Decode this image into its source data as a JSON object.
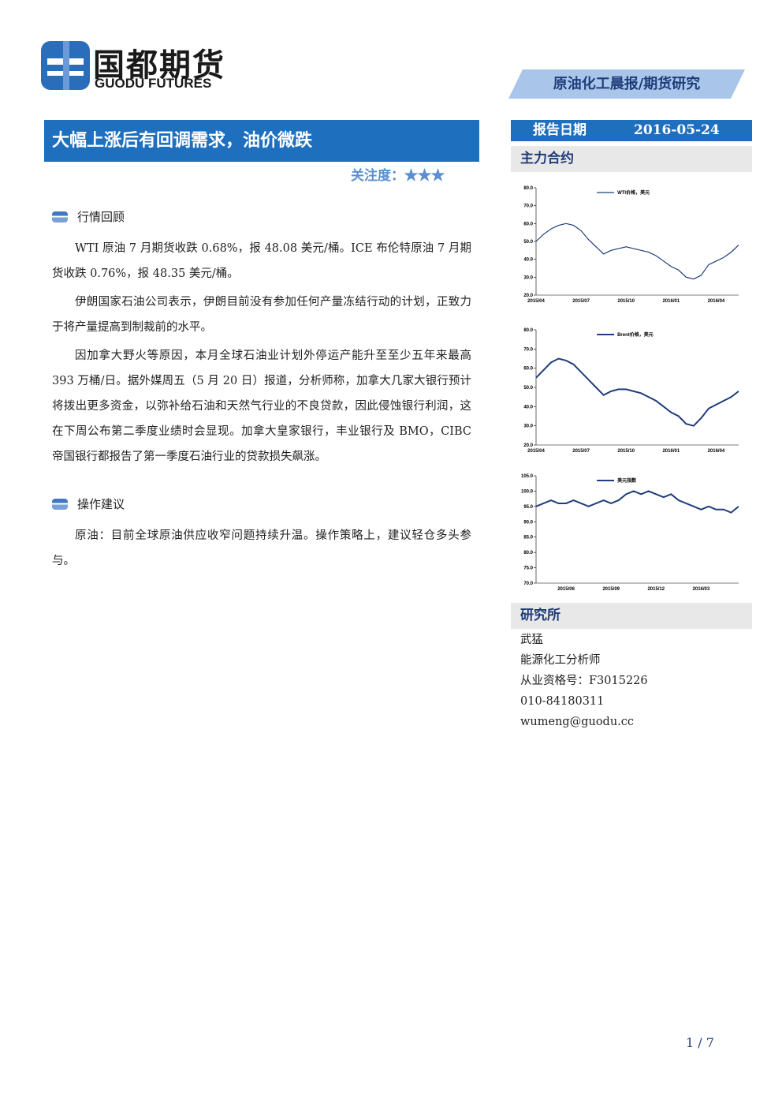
{
  "header": {
    "logo_cn": "国都期货",
    "logo_en": "GUODU FUTURES",
    "report_type": "原油化工晨报/期货研究"
  },
  "title": "大幅上涨后有回调需求，油价微跌",
  "attention": {
    "label": "关注度：",
    "stars": "★★★"
  },
  "sections": [
    {
      "heading": "行情回顾",
      "paragraphs": [
        "WTI 原油 7 月期货收跌 0.68%，报 48.08 美元/桶。ICE 布伦特原油 7 月期货收跌 0.76%，报 48.35 美元/桶。",
        "伊朗国家石油公司表示，伊朗目前没有参加任何产量冻结行动的计划，正致力于将产量提高到制裁前的水平。",
        "因加拿大野火等原因，本月全球石油业计划外停运产能升至至少五年来最高 393 万桶/日。据外媒周五（5 月 20 日）报道，分析师称，加拿大几家大银行预计将拨出更多资金，以弥补给石油和天然气行业的不良贷款，因此侵蚀银行利润，这在下周公布第二季度业绩时会显现。加拿大皇家银行，丰业银行及 BMO，CIBC 帝国银行都报告了第一季度石油行业的贷款损失飙涨。"
      ]
    },
    {
      "heading": "操作建议",
      "paragraphs": [
        "原油：目前全球原油供应收窄问题持续升温。操作策略上，建议轻仓多头参与。"
      ]
    }
  ],
  "sidebar": {
    "date_label": "报告日期",
    "date": "2016-05-24",
    "contracts_heading": "主力合约",
    "research_heading": "研究所",
    "contacts": [
      "武猛",
      "能源化工分析师",
      "从业资格号：F3015226",
      "010-84180311",
      "wumeng@guodu.cc"
    ]
  },
  "footer": {
    "page": "1 / 7"
  },
  "chart_data": [
    {
      "type": "line",
      "categories": [
        "2015/04",
        null,
        null,
        null,
        null,
        null,
        "2015/07",
        null,
        null,
        null,
        null,
        null,
        "2015/10",
        null,
        null,
        null,
        null,
        null,
        "2016/01",
        null,
        null,
        null,
        null,
        null,
        "2016/04",
        null,
        null,
        null
      ],
      "series": [
        {
          "name": "WTI价格，美元",
          "color": "#1f3d7a",
          "values": [
            50,
            54,
            57,
            59,
            60,
            59,
            56,
            51,
            47,
            43,
            45,
            46,
            47,
            46,
            45,
            44,
            42,
            39,
            36,
            34,
            30,
            29,
            31,
            37,
            39,
            41,
            44,
            48
          ]
        }
      ],
      "ylim": [
        20,
        80
      ],
      "yticks": [
        {
          "value": 20,
          "label": "20.0"
        },
        {
          "value": 30,
          "label": "30.0"
        },
        {
          "value": 40,
          "label": "40.0"
        },
        {
          "value": 50,
          "label": "50.0"
        },
        {
          "value": 60,
          "label": "60.0"
        },
        {
          "value": 70,
          "label": "70.0"
        },
        {
          "value": 80,
          "label": "80.0"
        }
      ]
    },
    {
      "type": "line",
      "categories": [
        "2015/04",
        null,
        null,
        null,
        null,
        null,
        "2015/07",
        null,
        null,
        null,
        null,
        null,
        "2015/10",
        null,
        null,
        null,
        null,
        null,
        "2016/01",
        null,
        null,
        null,
        null,
        null,
        "2016/04",
        null,
        null,
        null
      ],
      "series": [
        {
          "name": "Brent价格，美元",
          "color": "#1f3d7a",
          "values": [
            55,
            59,
            63,
            65,
            64,
            62,
            58,
            54,
            50,
            46,
            48,
            49,
            49,
            48,
            47,
            45,
            43,
            40,
            37,
            35,
            31,
            30,
            34,
            39,
            41,
            43,
            45,
            48
          ]
        }
      ],
      "ylim": [
        20,
        80
      ],
      "yticks": [
        {
          "value": 20,
          "label": "20.0"
        },
        {
          "value": 30,
          "label": "30.0"
        },
        {
          "value": 40,
          "label": "40.0"
        },
        {
          "value": 50,
          "label": "50.0"
        },
        {
          "value": 60,
          "label": "60.0"
        },
        {
          "value": 70,
          "label": "70.0"
        },
        {
          "value": 80,
          "label": "80.0"
        }
      ]
    },
    {
      "type": "line",
      "categories": [
        null,
        null,
        null,
        null,
        "2015/06",
        null,
        null,
        null,
        null,
        null,
        "2015/09",
        null,
        null,
        null,
        null,
        null,
        "2015/12",
        null,
        null,
        null,
        null,
        null,
        "2016/03",
        null,
        null,
        null,
        null,
        null
      ],
      "series": [
        {
          "name": "美元指数",
          "color": "#1f3d7a",
          "values": [
            95,
            96,
            97,
            96,
            96,
            97,
            96,
            95,
            96,
            97,
            96,
            97,
            99,
            100,
            99,
            100,
            99,
            98,
            99,
            97,
            96,
            95,
            94,
            95,
            94,
            94,
            93,
            95
          ]
        }
      ],
      "ylim": [
        70,
        105
      ],
      "yticks": [
        {
          "value": 70,
          "label": "70.0"
        },
        {
          "value": 75,
          "label": "75.0"
        },
        {
          "value": 80,
          "label": "80.0"
        },
        {
          "value": 85,
          "label": "85.0"
        },
        {
          "value": 90,
          "label": "90.0"
        },
        {
          "value": 95,
          "label": "95.0"
        },
        {
          "value": 100,
          "label": "100.0"
        },
        {
          "value": 105,
          "label": "105.0"
        }
      ]
    }
  ]
}
